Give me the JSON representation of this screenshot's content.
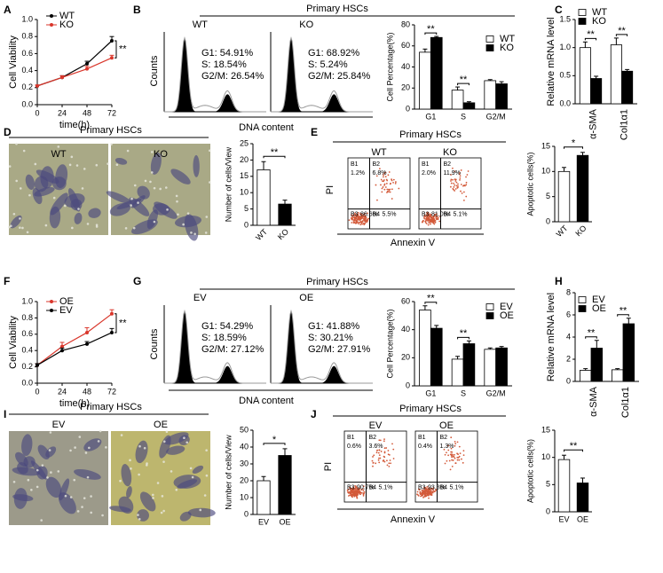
{
  "panels": [
    {
      "label": "A"
    },
    {
      "label": "B",
      "title": "Primary HSCs",
      "x_label": "DNA content",
      "y_label": "Counts",
      "samples": [
        {
          "name": "WT",
          "stats": [
            "G1: 54.91%",
            "S: 18.54%",
            "G2/M: 26.54%"
          ]
        },
        {
          "name": "KO",
          "stats": [
            "G1: 68.92%",
            "S: 5.24%",
            "G2/M: 25.84%"
          ]
        }
      ]
    },
    {
      "label": "C"
    },
    {
      "label": "D",
      "title": "Primary HSCs",
      "samples": [
        {
          "name": "WT"
        },
        {
          "name": "KO"
        }
      ]
    },
    {
      "label": "E",
      "title": "Primary HSCs",
      "x_label": "Annexin V",
      "y_label": "PI",
      "samples": [
        {
          "name": "WT",
          "quadrants": [
            {
              "name": "B1",
              "value": "1.2%"
            },
            {
              "name": "B2",
              "value": "6.8%"
            },
            {
              "name": "B3",
              "value": "86.6%"
            },
            {
              "name": "B4",
              "value": "5.5%"
            }
          ]
        },
        {
          "name": "KO",
          "quadrants": [
            {
              "name": "B1",
              "value": "2.0%"
            },
            {
              "name": "B2",
              "value": "11.9%"
            },
            {
              "name": "B3",
              "value": "81.0%"
            },
            {
              "name": "B4",
              "value": "5.1%"
            }
          ]
        }
      ]
    },
    {
      "label": "F"
    },
    {
      "label": "G",
      "title": "Primary HSCs",
      "x_label": "DNA content",
      "y_label": "Counts",
      "samples": [
        {
          "name": "EV",
          "stats": [
            "G1: 54.29%",
            "S: 18.59%",
            "G2/M: 27.12%"
          ]
        },
        {
          "name": "OE",
          "stats": [
            "G1: 41.88%",
            "S: 30.21%",
            "G2/M: 27.91%"
          ]
        }
      ]
    },
    {
      "label": "H"
    },
    {
      "label": "I",
      "title": "Primary HSCs",
      "samples": [
        {
          "name": "EV"
        },
        {
          "name": "OE"
        }
      ]
    },
    {
      "label": "J",
      "title": "Primary HSCs",
      "x_label": "Annexin V",
      "y_label": "PI",
      "samples": [
        {
          "name": "EV",
          "quadrants": [
            {
              "name": "B1",
              "value": "0.6%"
            },
            {
              "name": "B2",
              "value": "3.6%"
            },
            {
              "name": "B3",
              "value": "90.7%"
            },
            {
              "name": "B4",
              "value": "5.1%"
            }
          ]
        },
        {
          "name": "OE",
          "quadrants": [
            {
              "name": "B1",
              "value": "0.4%"
            },
            {
              "name": "B2",
              "value": "1.3%"
            },
            {
              "name": "B3",
              "value": "93.3%"
            },
            {
              "name": "B4",
              "value": "5.1%"
            }
          ]
        }
      ]
    }
  ],
  "chart_data": [
    {
      "type": "line",
      "x": [
        0,
        24,
        48,
        72
      ],
      "xlim": [
        0,
        72
      ],
      "xticks": [
        0,
        24,
        48,
        72
      ],
      "ylim": [
        0,
        1
      ],
      "yticks": [
        {
          "value": 0,
          "label": "0.0"
        },
        0.2,
        0.4,
        0.6,
        0.8,
        {
          "value": 1,
          "label": "1.0"
        }
      ],
      "x_label": "time(h)",
      "y_label": "Cell Viability",
      "series": [
        {
          "name": "WT",
          "color": "#000000",
          "values": [
            0.22,
            0.32,
            0.48,
            0.75
          ],
          "errors": [
            0.01,
            0.02,
            0.03,
            0.05
          ]
        },
        {
          "name": "KO",
          "color": "#d9362b",
          "values": [
            0.22,
            0.32,
            0.42,
            0.55
          ],
          "errors": [
            0.01,
            0.02,
            0.03,
            0.03
          ]
        }
      ],
      "annotations": [
        "**"
      ]
    },
    {
      "type": "bar",
      "categories": [
        "G1",
        "S",
        "G2/M"
      ],
      "ylim": [
        0,
        80
      ],
      "yticks": [
        0,
        20,
        40,
        60,
        80
      ],
      "y_label": "Cell Percentage(%)",
      "series": [
        {
          "name": "WT",
          "color": "#ffffff",
          "values": [
            54,
            18,
            27
          ],
          "errors": [
            3,
            3,
            1
          ]
        },
        {
          "name": "KO",
          "color": "#000000",
          "values": [
            68,
            6,
            24
          ],
          "errors": [
            1,
            1,
            2
          ]
        }
      ],
      "annotations": [
        "**",
        "**"
      ]
    },
    {
      "type": "bar",
      "categories": [
        "α-SMA",
        "Col1α1"
      ],
      "ylim": [
        0,
        1.5
      ],
      "yticks": [
        {
          "value": 0,
          "label": "0.0"
        },
        0.5,
        {
          "value": 1,
          "label": "1.0"
        },
        1.5
      ],
      "y_label": "Relative mRNA level",
      "series": [
        {
          "name": "WT",
          "color": "#ffffff",
          "values": [
            1.0,
            1.05
          ],
          "errors": [
            0.1,
            0.12
          ]
        },
        {
          "name": "KO",
          "color": "#000000",
          "values": [
            0.45,
            0.58
          ],
          "errors": [
            0.04,
            0.03
          ]
        }
      ],
      "annotations": [
        "**",
        "**"
      ]
    },
    {
      "type": "bar",
      "categories": [
        "WT",
        "KO"
      ],
      "values": [
        17,
        6.5
      ],
      "errors": [
        2.5,
        1.2
      ],
      "colors": [
        "#ffffff",
        "#000000"
      ],
      "ylim": [
        0,
        25
      ],
      "yticks": [
        0,
        5,
        10,
        15,
        20,
        25
      ],
      "y_label": "Number of cells/View",
      "annotations": [
        "**"
      ]
    },
    {
      "type": "bar",
      "categories": [
        "WT",
        "KO"
      ],
      "values": [
        10,
        13.2
      ],
      "errors": [
        0.8,
        0.6
      ],
      "colors": [
        "#ffffff",
        "#000000"
      ],
      "ylim": [
        0,
        15
      ],
      "yticks": [
        0,
        5,
        10,
        15
      ],
      "y_label": "Apoptotic cells(%)",
      "annotations": [
        "*"
      ]
    },
    {
      "type": "line",
      "x": [
        0,
        24,
        48,
        72
      ],
      "xlim": [
        0,
        72
      ],
      "xticks": [
        0,
        24,
        48,
        72
      ],
      "ylim": [
        0,
        1
      ],
      "yticks": [
        {
          "value": 0,
          "label": "0.0"
        },
        0.2,
        0.4,
        0.6,
        0.8,
        {
          "value": 1,
          "label": "1.0"
        }
      ],
      "x_label": "time(h)",
      "y_label": "Cell Viability",
      "series": [
        {
          "name": "OE",
          "color": "#d9362b",
          "values": [
            0.22,
            0.45,
            0.62,
            0.85
          ],
          "errors": [
            0.02,
            0.05,
            0.06,
            0.05
          ]
        },
        {
          "name": "EV",
          "color": "#000000",
          "values": [
            0.22,
            0.4,
            0.48,
            0.62
          ],
          "errors": [
            0.02,
            0.03,
            0.03,
            0.05
          ]
        }
      ],
      "annotations": [
        "**"
      ]
    },
    {
      "type": "bar",
      "categories": [
        "G1",
        "S",
        "G2/M"
      ],
      "ylim": [
        0,
        60
      ],
      "yticks": [
        0,
        20,
        40,
        60
      ],
      "y_label": "Cell Percentage(%)",
      "series": [
        {
          "name": "EV",
          "color": "#ffffff",
          "values": [
            54,
            19,
            26
          ],
          "errors": [
            3,
            2,
            1
          ]
        },
        {
          "name": "OE",
          "color": "#000000",
          "values": [
            41,
            30,
            27
          ],
          "errors": [
            2,
            2,
            1
          ]
        }
      ],
      "annotations": [
        "**",
        "**"
      ]
    },
    {
      "type": "bar",
      "categories": [
        "α-SMA",
        "Col1α1"
      ],
      "ylim": [
        0,
        8
      ],
      "yticks": [
        0,
        2,
        4,
        6,
        8
      ],
      "y_label": "Relative mRNA level",
      "series": [
        {
          "name": "EV",
          "color": "#ffffff",
          "values": [
            1.0,
            1.05
          ],
          "errors": [
            0.15,
            0.1
          ]
        },
        {
          "name": "OE",
          "color": "#000000",
          "values": [
            3.0,
            5.2
          ],
          "errors": [
            0.7,
            0.5
          ]
        }
      ],
      "annotations": [
        "**",
        "**"
      ]
    },
    {
      "type": "bar",
      "categories": [
        "EV",
        "OE"
      ],
      "values": [
        20,
        35
      ],
      "errors": [
        2.5,
        4
      ],
      "colors": [
        "#ffffff",
        "#000000"
      ],
      "ylim": [
        0,
        50
      ],
      "yticks": [
        0,
        10,
        20,
        30,
        40,
        50
      ],
      "y_label": "Number of cells/View",
      "annotations": [
        "*"
      ]
    },
    {
      "type": "bar",
      "categories": [
        "EV",
        "OE"
      ],
      "values": [
        9.6,
        5.3
      ],
      "errors": [
        0.8,
        0.9
      ],
      "colors": [
        "#ffffff",
        "#000000"
      ],
      "ylim": [
        0,
        15
      ],
      "yticks": [
        0,
        5,
        10,
        15
      ],
      "y_label": "Apoptotic cells(%)",
      "annotations": [
        "**"
      ]
    }
  ]
}
